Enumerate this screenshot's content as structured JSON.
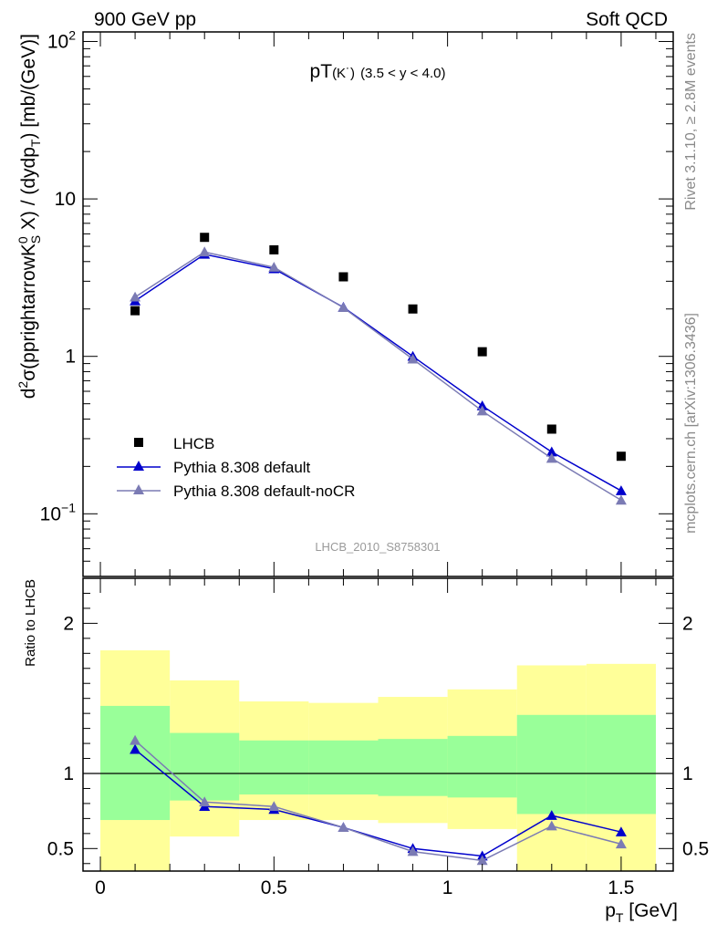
{
  "header": {
    "left_title": "900 GeV pp",
    "right_title": "Soft QCD"
  },
  "side_labels": {
    "rivet": "Rivet 3.1.10, ≥ 2.8M events",
    "source": "mcplots.cern.ch [arXiv:1306.3436]"
  },
  "chart_data": [
    {
      "type": "scatter",
      "title": "pT(K˙) (3.5 < y < 4.0)",
      "title_main": "pT",
      "title_sub": "(K˙)",
      "title_range": "(3.5 < y < 4.0)",
      "ylabel": "d²σ(pprightarrowK⁰S X) / (dydpT) [mb/(GeV)]",
      "ylabel_parts": [
        "d",
        "2",
        "σ(pprightarrowK",
        "0",
        "S",
        " X) / (dydp",
        "T",
        ") [mb/(GeV)]"
      ],
      "yscale": "log",
      "ylim": [
        0.04,
        115
      ],
      "xlim": [
        -0.05,
        1.65
      ],
      "ytick_labels": [
        "10−1",
        "1",
        "10",
        "10²"
      ],
      "ytick_parts": [
        [
          "10",
          "−1"
        ],
        [
          "1",
          ""
        ],
        [
          "10",
          ""
        ],
        [
          "10",
          "2"
        ]
      ],
      "annotation": "LHCB_2010_S8758301",
      "legend_position": "center-left",
      "legend": [
        "LHCB",
        "Pythia 8.308 default",
        "Pythia 8.308 default-noCR"
      ],
      "x": [
        0.1,
        0.3,
        0.5,
        0.7,
        0.9,
        1.1,
        1.3,
        1.5
      ],
      "series": [
        {
          "name": "LHCB",
          "color": "#000000",
          "marker": "square",
          "values": [
            1.95,
            5.7,
            4.75,
            3.2,
            2.0,
            1.07,
            0.345,
            0.232
          ]
        },
        {
          "name": "Pythia 8.308 default",
          "color": "#0000cc",
          "marker": "triangle",
          "values": [
            2.25,
            4.45,
            3.6,
            2.05,
            1.0,
            0.485,
            0.247,
            0.14
          ]
        },
        {
          "name": "Pythia 8.308 default-noCR",
          "color": "#7b7bb4",
          "marker": "triangle",
          "values": [
            2.38,
            4.6,
            3.68,
            2.04,
            0.96,
            0.45,
            0.225,
            0.122
          ]
        }
      ]
    },
    {
      "type": "line",
      "ylabel": "Ratio to LHCB",
      "xlabel": "p_T [GeV]",
      "xlabel_main": "p",
      "xlabel_sub": "T",
      "xlabel_unit": " [GeV]",
      "ylim": [
        0.35,
        2.3
      ],
      "xlim": [
        -0.05,
        1.65
      ],
      "xtick_labels": [
        "0",
        "0.5",
        "1",
        "1.5"
      ],
      "ytick_labels": [
        "0.5",
        "1",
        "2"
      ],
      "x": [
        0.1,
        0.3,
        0.5,
        0.7,
        0.9,
        1.1,
        1.3,
        1.5
      ],
      "bins": [
        [
          0.0,
          0.2
        ],
        [
          0.2,
          0.4
        ],
        [
          0.4,
          0.6
        ],
        [
          0.6,
          0.8
        ],
        [
          0.8,
          1.0
        ],
        [
          1.0,
          1.2
        ],
        [
          1.2,
          1.4
        ],
        [
          1.4,
          1.6
        ]
      ],
      "band_stat_lo": [
        0.69,
        0.82,
        0.86,
        0.86,
        0.85,
        0.84,
        0.73,
        0.73
      ],
      "band_stat_hi": [
        1.45,
        1.27,
        1.22,
        1.22,
        1.23,
        1.25,
        1.39,
        1.39
      ],
      "band_total_lo": [
        0.3,
        0.58,
        0.69,
        0.69,
        0.67,
        0.63,
        0.3,
        0.3
      ],
      "band_total_hi": [
        1.82,
        1.62,
        1.48,
        1.47,
        1.51,
        1.56,
        1.72,
        1.73
      ],
      "stat_color": "#99ff99",
      "total_color": "#ffff99",
      "series": [
        {
          "name": "Pythia 8.308 default",
          "color": "#0000cc",
          "values": [
            1.16,
            0.78,
            0.76,
            0.64,
            0.5,
            0.45,
            0.72,
            0.61
          ]
        },
        {
          "name": "Pythia 8.308 default-noCR",
          "color": "#7b7bb4",
          "values": [
            1.22,
            0.81,
            0.78,
            0.64,
            0.48,
            0.42,
            0.65,
            0.53
          ]
        }
      ]
    }
  ]
}
